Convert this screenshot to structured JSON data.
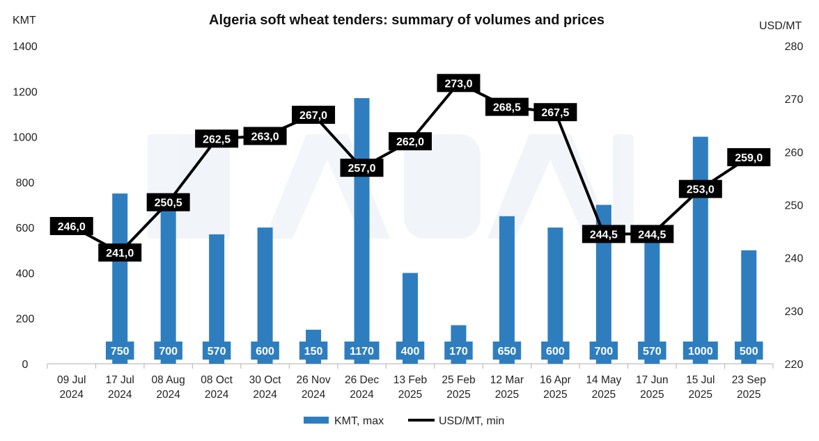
{
  "chart_data": {
    "type": "bar+line",
    "title": "Algeria soft wheat tenders: summary of volumes and prices",
    "y_left_unit": "KMT",
    "y_right_unit": "USD/MT",
    "y_left_range": [
      0,
      1400
    ],
    "y_left_ticks": [
      "0",
      "200",
      "400",
      "600",
      "800",
      "1000",
      "1200",
      "1400"
    ],
    "y_right_range": [
      220,
      280
    ],
    "y_right_ticks": [
      "220",
      "230",
      "240",
      "250",
      "260",
      "270",
      "280"
    ],
    "categories": [
      [
        "09 Jul",
        "2024"
      ],
      [
        "17 Jul",
        "2024"
      ],
      [
        "08 Aug",
        "2024"
      ],
      [
        "08 Oct",
        "2024"
      ],
      [
        "30 Oct",
        "2024"
      ],
      [
        "26 Nov",
        "2024"
      ],
      [
        "26 Dec",
        "2024"
      ],
      [
        "13 Feb",
        "2025"
      ],
      [
        "25 Feb",
        "2025"
      ],
      [
        "12 Mar",
        "2025"
      ],
      [
        "16 Apr",
        "2025"
      ],
      [
        "14 May",
        "2025"
      ],
      [
        "17 Jun",
        "2025"
      ],
      [
        "15 Jul",
        "2025"
      ],
      [
        "23 Sep",
        "2025"
      ]
    ],
    "series": [
      {
        "name": "KMT, max",
        "type": "bar",
        "axis": "left",
        "color": "#2e7ebf",
        "values": [
          null,
          750,
          700,
          570,
          600,
          150,
          1170,
          400,
          170,
          650,
          600,
          700,
          570,
          1000,
          500
        ],
        "labels": [
          "",
          "750",
          "700",
          "570",
          "600",
          "150",
          "1170",
          "400",
          "170",
          "650",
          "600",
          "700",
          "570",
          "1000",
          "500"
        ]
      },
      {
        "name": "USD/MT, min",
        "type": "line",
        "axis": "right",
        "color": "#000000",
        "values": [
          246.0,
          241.0,
          250.5,
          262.5,
          263.0,
          267.0,
          257.0,
          262.0,
          273.0,
          268.5,
          267.5,
          244.5,
          244.5,
          253.0,
          259.0
        ],
        "labels": [
          "246,0",
          "241,0",
          "250,5",
          "262,5",
          "263,0",
          "267,0",
          "257,0",
          "262,0",
          "273,0",
          "268,5",
          "267,5",
          "244,5",
          "244,5",
          "253,0",
          "259,0"
        ]
      }
    ],
    "legend_position": "bottom-center",
    "grid": false,
    "watermark": "ASAP"
  }
}
